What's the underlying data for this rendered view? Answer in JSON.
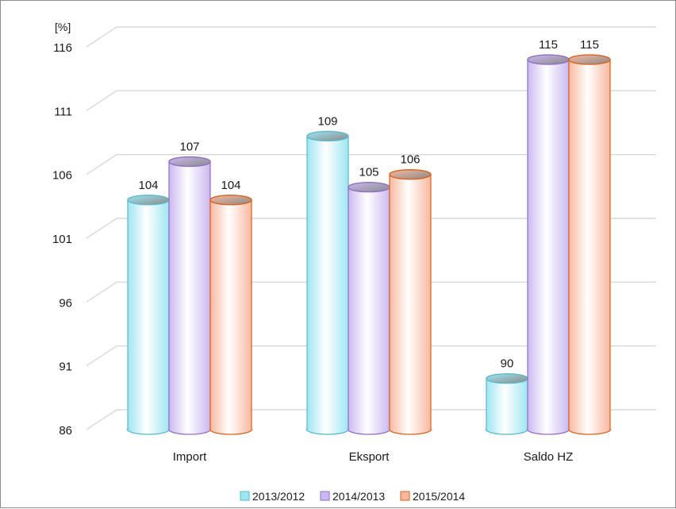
{
  "chart_data": {
    "type": "bar",
    "style": "3d-cylinder",
    "unit_label": "[%]",
    "categories": [
      "Import",
      "Eksport",
      "Saldo HZ"
    ],
    "series": [
      {
        "name": "2013/2012",
        "values": [
          104,
          109,
          90
        ],
        "color": "#9ee6f2",
        "edge": "#5cb8cc"
      },
      {
        "name": "2014/2013",
        "values": [
          107,
          105,
          115
        ],
        "color": "#cbb8f0",
        "edge": "#8e6fc4"
      },
      {
        "name": "2015/2014",
        "values": [
          104,
          106,
          115
        ],
        "color": "#f8b8a0",
        "edge": "#d9631c"
      }
    ],
    "data_labels": [
      [
        "104",
        "109",
        "90"
      ],
      [
        "107",
        "105",
        "115"
      ],
      [
        "104",
        "106",
        "115"
      ]
    ],
    "ylim": [
      86,
      116
    ],
    "yticks": [
      "86",
      "91",
      "96",
      "101",
      "106",
      "111",
      "116"
    ],
    "grid": true,
    "legend_position": "bottom",
    "xlabel": "",
    "ylabel": ""
  }
}
